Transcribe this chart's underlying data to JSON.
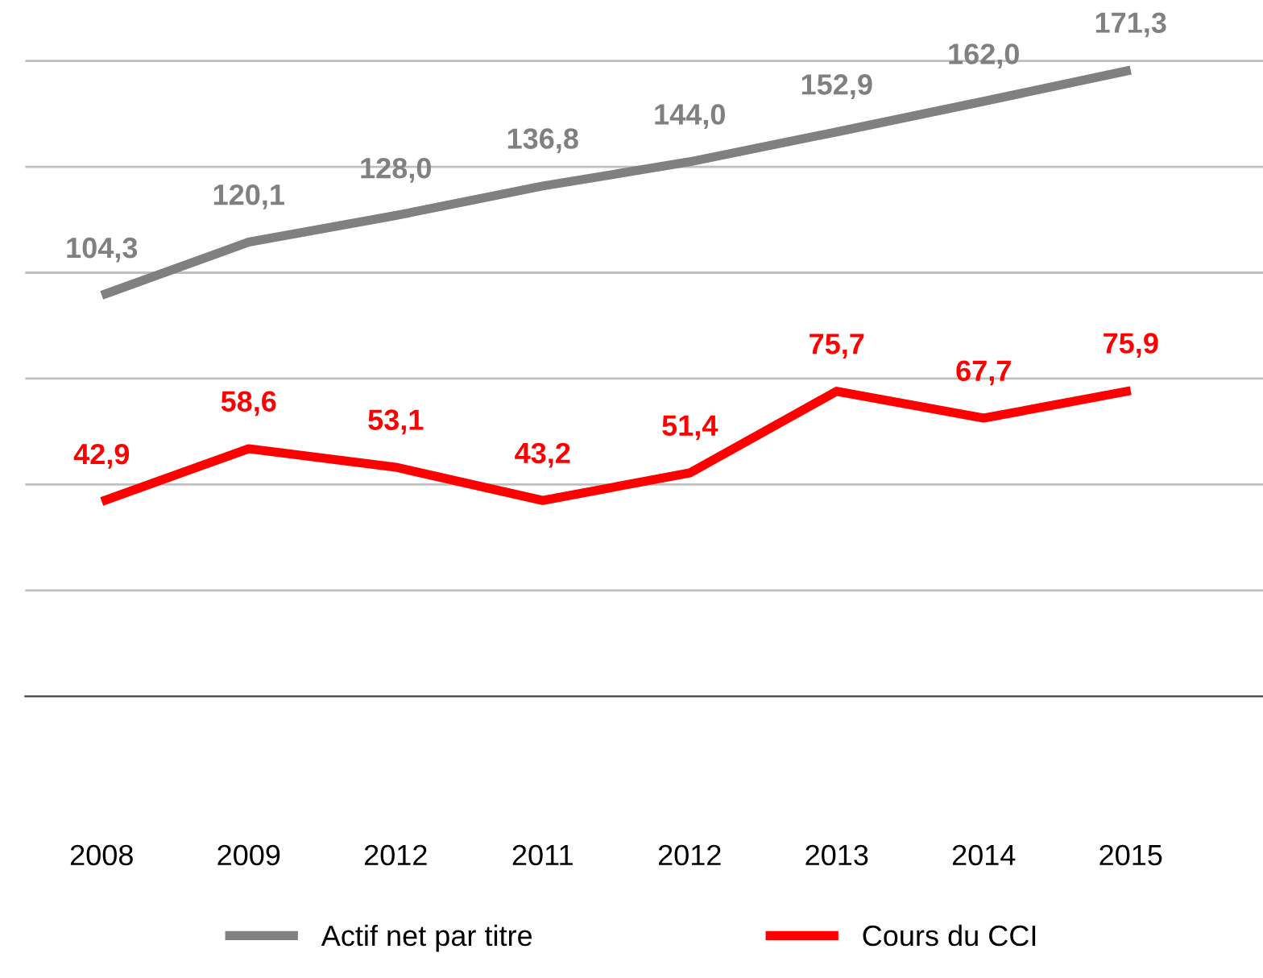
{
  "chart_data": {
    "type": "line",
    "categories": [
      "2008",
      "2009",
      "2012",
      "2011",
      "2012",
      "2013",
      "2014",
      "2015"
    ],
    "series": [
      {
        "name": "Actif net par titre",
        "color": "#808080",
        "values": [
          104.3,
          120.1,
          128.0,
          136.8,
          144.0,
          152.9,
          162.0,
          171.3
        ],
        "value_labels": [
          "104,3",
          "120,1",
          "128,0",
          "136,8",
          "144,0",
          "152,9",
          "162,0",
          "171,3"
        ]
      },
      {
        "name": "Cours du CCI",
        "color": "#ff0000",
        "values": [
          42.9,
          58.6,
          53.1,
          43.2,
          51.4,
          75.7,
          67.7,
          75.9
        ],
        "value_labels": [
          "42,9",
          "58,6",
          "53,1",
          "43,2",
          "51,4",
          "75,7",
          "67,7",
          "75,9"
        ]
      }
    ],
    "tick_labels": "x",
    "grid": "y",
    "legend": "bottom",
    "marker": "none",
    "line_style": "solid"
  }
}
